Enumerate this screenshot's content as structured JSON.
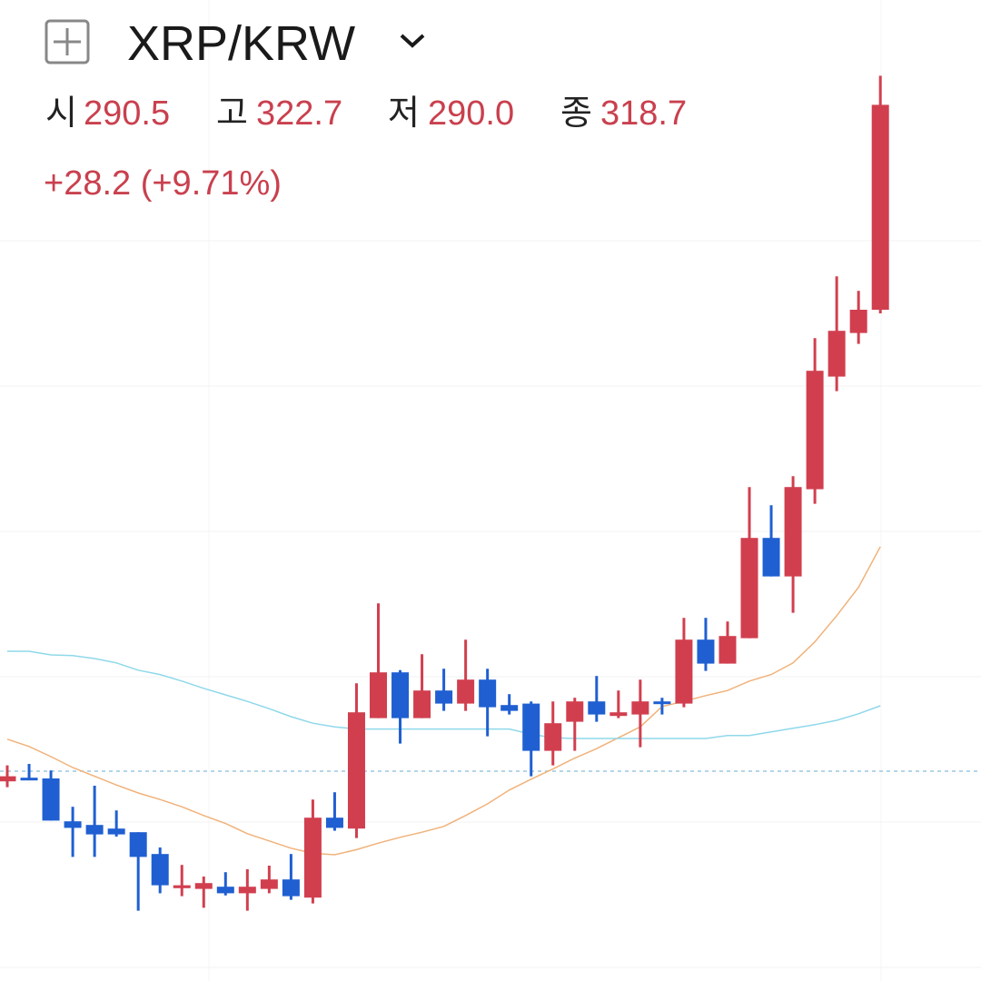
{
  "header": {
    "symbol": "XRP/KRW",
    "open_label": "시",
    "open": "290.5",
    "high_label": "고",
    "high": "322.7",
    "low_label": "저",
    "low": "290.0",
    "close_label": "종",
    "close": "318.7",
    "change": "+28.2 (+9.71%)"
  },
  "chart_data": {
    "type": "candlestick",
    "open": [
      225.6,
      226.1,
      226.0,
      220.1,
      219.6,
      219.1,
      218.6,
      215.6,
      210.9,
      210.8,
      211.1,
      210.2,
      210.8,
      212.1,
      209.6,
      220.6,
      219.1,
      234.3,
      240.6,
      234.3,
      238.1,
      236.3,
      239.6,
      236.1,
      236.3,
      229.8,
      233.8,
      236.6,
      234.6,
      234.8,
      236.6,
      236.3,
      245.1,
      241.8,
      245.3,
      259.1,
      253.8,
      265.8,
      281.3,
      287.3,
      290.5
    ],
    "high": [
      227.8,
      228.0,
      227.1,
      222.1,
      225.0,
      221.6,
      218.6,
      216.5,
      214.1,
      212.5,
      213.1,
      213.5,
      214.0,
      215.6,
      223.1,
      224.1,
      239.1,
      250.1,
      240.9,
      243.1,
      241.1,
      245.1,
      241.1,
      237.6,
      236.6,
      236.6,
      237.1,
      240.1,
      238.1,
      239.6,
      237.1,
      248.1,
      248.1,
      247.6,
      266.1,
      263.6,
      267.6,
      286.6,
      295.1,
      293.1,
      322.7
    ],
    "low": [
      224.8,
      225.9,
      220.2,
      215.2,
      215.2,
      218.0,
      207.8,
      210.2,
      209.8,
      208.2,
      209.9,
      207.8,
      210.2,
      209.3,
      208.8,
      218.8,
      217.8,
      234.3,
      230.8,
      234.3,
      235.3,
      235.3,
      231.8,
      234.8,
      226.3,
      227.8,
      229.8,
      233.8,
      234.3,
      230.3,
      234.8,
      235.8,
      240.8,
      241.8,
      245.3,
      253.8,
      248.8,
      263.8,
      279.3,
      285.8,
      290.0
    ],
    "close": [
      226.3,
      225.9,
      220.2,
      219.2,
      218.3,
      218.3,
      215.2,
      211.3,
      211.3,
      211.6,
      210.2,
      211.1,
      212.1,
      209.8,
      220.6,
      219.2,
      235.1,
      240.6,
      234.3,
      238.1,
      236.3,
      239.6,
      235.8,
      235.3,
      229.8,
      233.6,
      236.6,
      234.8,
      235.1,
      236.6,
      236.3,
      245.1,
      241.8,
      245.6,
      259.1,
      253.8,
      266.1,
      282.1,
      287.6,
      290.5,
      318.7
    ],
    "up_color": "#d13f4f",
    "down_color": "#1f5fd1",
    "moving_averages": [
      {
        "color": "#f0b27a",
        "values": [
          231.4,
          230.4,
          229.0,
          227.5,
          226.3,
          225.1,
          224.0,
          223.1,
          222.1,
          220.9,
          219.8,
          218.4,
          217.4,
          216.4,
          215.7,
          215.5,
          216.2,
          217.1,
          217.9,
          218.6,
          219.4,
          220.9,
          222.5,
          224.4,
          225.9,
          227.3,
          228.8,
          230.1,
          231.6,
          233.1,
          235.9,
          236.6,
          237.4,
          238.1,
          239.4,
          240.3,
          241.9,
          244.8,
          248.4,
          252.3,
          257.9
        ]
      },
      {
        "color": "#8fd8ea",
        "values": [
          243.5,
          243.5,
          243.0,
          242.9,
          242.5,
          241.9,
          240.9,
          240.3,
          239.4,
          238.4,
          237.5,
          236.6,
          235.6,
          234.5,
          233.6,
          233.1,
          232.8,
          232.8,
          232.8,
          232.8,
          232.8,
          232.8,
          232.8,
          232.8,
          232.1,
          231.6,
          231.5,
          231.5,
          231.5,
          231.5,
          231.5,
          231.5,
          231.5,
          231.9,
          231.9,
          232.4,
          232.9,
          233.4,
          234.0,
          234.9,
          236.0
        ]
      }
    ],
    "reference_line": 227.0,
    "reference_color": "#9cc7e0",
    "ylim": [
      198.125,
      333.125
    ],
    "yticks": [
      200,
      220,
      240,
      260,
      280,
      300
    ],
    "grid": true
  }
}
